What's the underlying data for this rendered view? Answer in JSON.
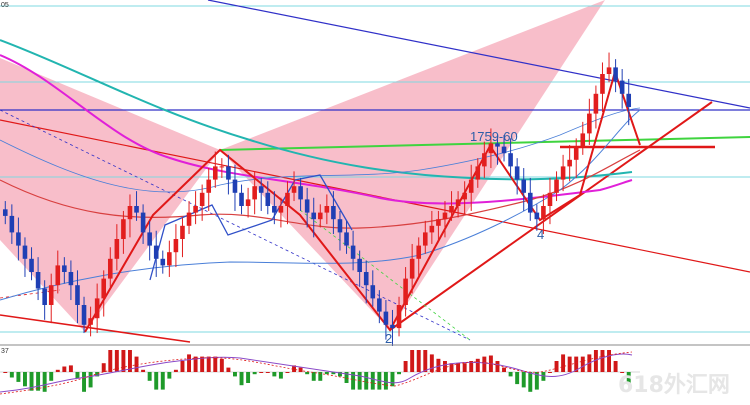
{
  "chart_data": {
    "type": "candlestick",
    "corner_label_top": "05",
    "corner_label_indicator": "37",
    "annotations": {
      "top_label": "1759-60",
      "wave_4_label": "4",
      "wave_2_label": "2"
    },
    "watermark": "618外汇网",
    "colors": {
      "bull": "#e21e1e",
      "bear": "#1f3fb4",
      "ma_cyan": "#22b5b0",
      "ma_magenta": "#e020d8",
      "ma_red": "#d84040",
      "ma_blue": "#4a7fd8",
      "trend_red": "#e01818",
      "trend_green": "#3fd43f",
      "channel_blue": "#3030c8",
      "fill_pink": "#f7b7c4",
      "hline_cyan": "#7fd8e0"
    },
    "y_range_price": [
      1690,
      1790
    ],
    "closes": [
      1727,
      1722,
      1718,
      1714,
      1710,
      1705,
      1700,
      1706,
      1712,
      1710,
      1706,
      1700,
      1694,
      1696,
      1702,
      1708,
      1714,
      1720,
      1726,
      1730,
      1728,
      1722,
      1718,
      1714,
      1712,
      1716,
      1720,
      1724,
      1728,
      1730,
      1734,
      1738,
      1742,
      1742,
      1738,
      1734,
      1730,
      1732,
      1736,
      1734,
      1730,
      1728,
      1730,
      1734,
      1736,
      1732,
      1728,
      1726,
      1728,
      1730,
      1726,
      1722,
      1718,
      1714,
      1710,
      1706,
      1702,
      1698,
      1694,
      1693,
      1700,
      1708,
      1714,
      1718,
      1722,
      1724,
      1726,
      1728,
      1730,
      1732,
      1734,
      1738,
      1742,
      1746,
      1749,
      1748,
      1746,
      1742,
      1738,
      1734,
      1728,
      1726,
      1730,
      1734,
      1738,
      1742,
      1744,
      1748,
      1752,
      1758,
      1764,
      1770,
      1772,
      1768,
      1764,
      1760
    ]
  }
}
